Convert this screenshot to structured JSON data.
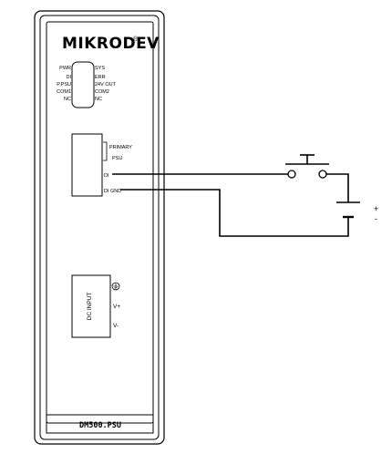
{
  "device": {
    "brand": "MIKRODEV",
    "brand_mark": "®",
    "model": "DM500.PSU"
  },
  "leds": {
    "left": [
      "PWR",
      "DI",
      "P.PSU",
      "COM1",
      "NC"
    ],
    "right": [
      "SYS",
      "ERR",
      "24V OUT",
      "COM2",
      "NC"
    ]
  },
  "terminals": {
    "primary_line1": "PRIMARY",
    "primary_line2": "PSU",
    "di": "DI",
    "di_gnd": "DI GND"
  },
  "dc_input": {
    "title": "DC INPUT",
    "vplus": "V+",
    "vminus": "V-"
  },
  "battery": {
    "plus": "+",
    "minus": "-"
  }
}
